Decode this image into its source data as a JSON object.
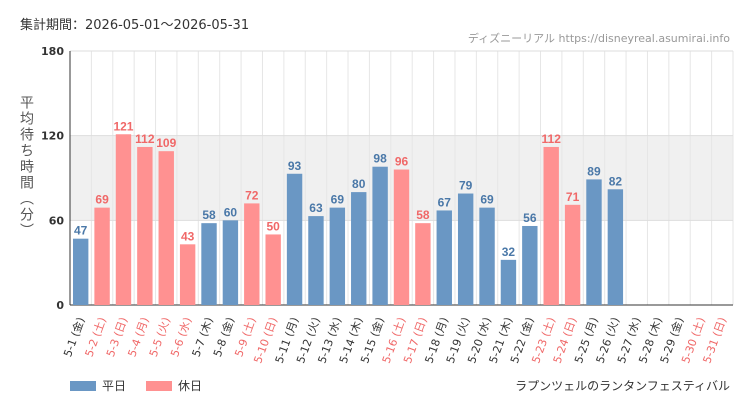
{
  "header": {
    "period": "集計期間：2026-05-01～2026-05-31",
    "credit": "ディズニーリアル https://disneyreal.asumirai.info"
  },
  "legend": {
    "weekday": "平日",
    "holiday": "休日"
  },
  "attraction": "ラプンツェルのランタンフェスティバル",
  "colors": {
    "weekday": "#6a97c4",
    "holiday": "#ff9191",
    "weekday_label": "#4a78a8",
    "holiday_label": "#f06868",
    "band": "#f0f0f0"
  },
  "chart_data": {
    "type": "bar",
    "ylabel": "平均待ち時間（分）",
    "ylim": [
      0,
      180
    ],
    "yticks": [
      0,
      60,
      120,
      180
    ],
    "shaded_band": [
      60,
      120
    ],
    "categories": [
      "5-1 (金)",
      "5-2 (土)",
      "5-3 (日)",
      "5-4 (月)",
      "5-5 (火)",
      "5-6 (水)",
      "5-7 (木)",
      "5-8 (金)",
      "5-9 (土)",
      "5-10 (日)",
      "5-11 (月)",
      "5-12 (火)",
      "5-13 (水)",
      "5-14 (木)",
      "5-15 (金)",
      "5-16 (土)",
      "5-17 (日)",
      "5-18 (月)",
      "5-19 (火)",
      "5-20 (水)",
      "5-21 (木)",
      "5-22 (金)",
      "5-23 (土)",
      "5-24 (日)",
      "5-25 (月)",
      "5-26 (火)",
      "5-27 (水)",
      "5-28 (木)",
      "5-29 (金)",
      "5-30 (土)",
      "5-31 (日)"
    ],
    "day_type": [
      "weekday",
      "holiday",
      "holiday",
      "holiday",
      "holiday",
      "holiday",
      "weekday",
      "weekday",
      "holiday",
      "holiday",
      "weekday",
      "weekday",
      "weekday",
      "weekday",
      "weekday",
      "holiday",
      "holiday",
      "weekday",
      "weekday",
      "weekday",
      "weekday",
      "weekday",
      "holiday",
      "holiday",
      "weekday",
      "weekday",
      "weekday",
      "weekday",
      "weekday",
      "holiday",
      "holiday"
    ],
    "values": [
      47,
      69,
      121,
      112,
      109,
      43,
      58,
      60,
      72,
      50,
      93,
      63,
      69,
      80,
      98,
      96,
      58,
      67,
      79,
      69,
      32,
      56,
      112,
      71,
      89,
      82,
      null,
      null,
      null,
      null,
      null
    ],
    "series": [
      {
        "name": "平日"
      },
      {
        "name": "休日"
      }
    ]
  }
}
